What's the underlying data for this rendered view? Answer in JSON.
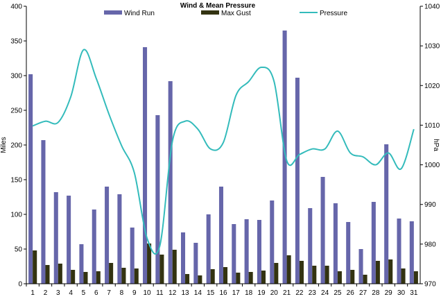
{
  "chart_data": {
    "type": "bar",
    "title": "Wind & Mean Pressure",
    "ylabel": "Miles",
    "y2label": "hPa",
    "categories": [
      "1",
      "2",
      "3",
      "4",
      "5",
      "6",
      "7",
      "8",
      "9",
      "10",
      "11",
      "12",
      "13",
      "14",
      "15",
      "16",
      "17",
      "18",
      "19",
      "20",
      "21",
      "22",
      "23",
      "24",
      "25",
      "26",
      "27",
      "28",
      "29",
      "30",
      "31"
    ],
    "ylim": [
      0,
      400
    ],
    "y2lim": [
      970,
      1040
    ],
    "y_ticks": [
      "0",
      "50",
      "100",
      "150",
      "200",
      "250",
      "300",
      "350",
      "400"
    ],
    "y2_ticks": [
      "970",
      "980",
      "990",
      "1000",
      "1010",
      "1020",
      "1030",
      "1040"
    ],
    "legend_position": "top",
    "series": [
      {
        "name": "Wind Run",
        "type": "bar",
        "axis": "left",
        "color": "#6666aa",
        "values": [
          302,
          207,
          132,
          127,
          57,
          107,
          140,
          129,
          81,
          341,
          243,
          292,
          74,
          59,
          100,
          140,
          86,
          93,
          92,
          120,
          365,
          297,
          109,
          154,
          116,
          89,
          50,
          118,
          201,
          94,
          90
        ]
      },
      {
        "name": "Max Gust",
        "type": "bar",
        "axis": "left",
        "color": "#333311",
        "values": [
          48,
          27,
          29,
          20,
          17,
          18,
          30,
          23,
          22,
          58,
          42,
          49,
          14,
          12,
          21,
          24,
          16,
          17,
          19,
          30,
          41,
          33,
          26,
          26,
          18,
          20,
          13,
          33,
          35,
          22,
          18
        ]
      },
      {
        "name": "Pressure",
        "type": "line",
        "axis": "right",
        "color": "#33bbbb",
        "values": [
          1009.8,
          1011.0,
          1010.7,
          1017.2,
          1029.0,
          1021.8,
          1012.8,
          1004.8,
          998.0,
          981.5,
          979.5,
          1006.0,
          1011.0,
          1009.0,
          1004.0,
          1005.6,
          1017.5,
          1021.0,
          1024.6,
          1021.0,
          1001.0,
          1002.6,
          1004.0,
          1004.0,
          1008.5,
          1003.0,
          1002.0,
          1000.0,
          1003.0,
          999.0,
          1009.0
        ]
      }
    ]
  }
}
